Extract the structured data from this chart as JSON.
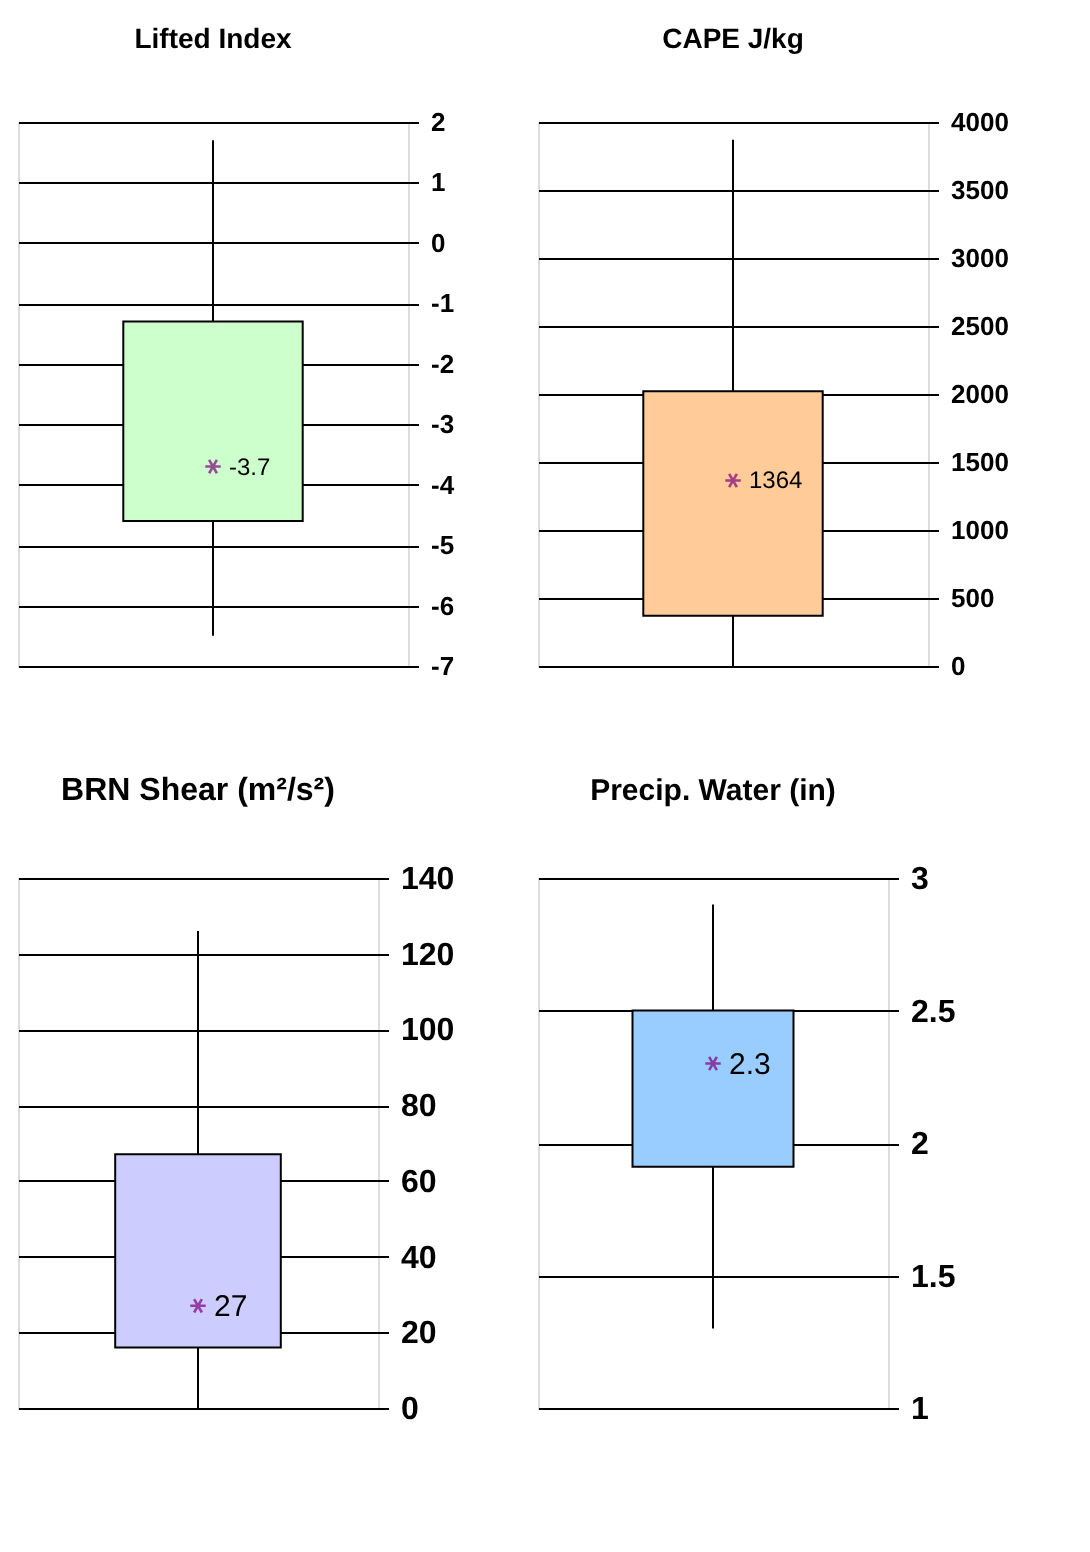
{
  "chart_data": [
    {
      "type": "box",
      "title": "Lifted Index",
      "categories": [
        null
      ],
      "boxes": [
        {
          "low": -6.5,
          "q1": -4.6,
          "q3": -1.3,
          "high": 1.7,
          "mean": -3.7
        }
      ],
      "color": "#ccffcc",
      "ylim": [
        -7,
        2
      ],
      "yticks": [
        -7,
        -6,
        -5,
        -4,
        -3,
        -2,
        -1,
        0,
        1,
        2
      ],
      "grid": "y",
      "annotations": [
        "-3.7"
      ]
    },
    {
      "type": "box",
      "title": "CAPE J/kg",
      "categories": [
        null
      ],
      "boxes": [
        {
          "low": 0,
          "q1": 370,
          "q3": 2020,
          "high": 3870,
          "mean": 1364
        }
      ],
      "color": "#ffcc99",
      "ylim": [
        0,
        4000
      ],
      "yticks": [
        0,
        500,
        1000,
        1500,
        2000,
        2500,
        3000,
        3500,
        4000
      ],
      "grid": "y",
      "annotations": [
        "1364"
      ]
    },
    {
      "type": "box",
      "title": "BRN Shear (m²/s²)",
      "categories": [
        null
      ],
      "boxes": [
        {
          "low": 0,
          "q1": 16,
          "q3": 67,
          "high": 126,
          "mean": 27
        }
      ],
      "color": "#ccccff",
      "ylim": [
        0,
        140
      ],
      "yticks": [
        0,
        20,
        40,
        60,
        80,
        100,
        120,
        140
      ],
      "grid": "y",
      "annotations": [
        "27"
      ]
    },
    {
      "type": "box",
      "title": "Precip. Water (in)",
      "categories": [
        null
      ],
      "boxes": [
        {
          "low": 1.3,
          "q1": 1.91,
          "q3": 2.5,
          "high": 2.9,
          "mean": 2.3
        }
      ],
      "color": "#99ccff",
      "ylim": [
        1,
        3
      ],
      "yticks": [
        1,
        1.5,
        2,
        2.5,
        3
      ],
      "grid": "y",
      "annotations": [
        "2.3"
      ]
    }
  ]
}
